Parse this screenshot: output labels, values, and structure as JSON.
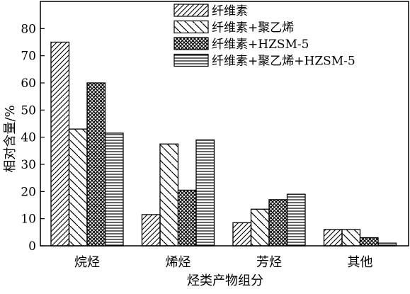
{
  "chart_data": {
    "type": "bar",
    "title": "",
    "xlabel": "烃类产物组分",
    "ylabel": "相对含量/%",
    "categories": [
      "烷烃",
      "烯烃",
      "芳烃",
      "其他"
    ],
    "series": [
      {
        "name": "纤维素",
        "values": [
          75,
          11.5,
          8.5,
          6
        ],
        "pattern": "diag-fwd"
      },
      {
        "name": "纤维素+聚乙烯",
        "values": [
          43,
          37.5,
          13.5,
          6
        ],
        "pattern": "diag-back"
      },
      {
        "name": "纤维素+HZSM-5",
        "values": [
          60,
          20.5,
          17,
          3
        ],
        "pattern": "crosshatch"
      },
      {
        "name": "纤维素+聚乙烯+HZSM-5",
        "values": [
          41.5,
          39,
          19,
          1
        ],
        "pattern": "horizontal"
      }
    ],
    "ylim": [
      0,
      90
    ],
    "yticks": [
      0,
      10,
      20,
      30,
      40,
      50,
      60,
      70,
      80
    ],
    "grid": false,
    "legend": "top-right"
  }
}
